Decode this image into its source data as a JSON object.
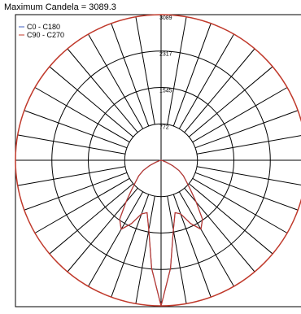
{
  "header": {
    "title": "Maximum Candela = 3089.3"
  },
  "colors": {
    "series_c0": "#3f5fc0",
    "series_c90": "#c0392b",
    "grid": "#000000",
    "frame": "#000000"
  },
  "chart_data": {
    "type": "polar",
    "title": "Maximum Candela = 3089.3",
    "radial_ticks": [
      "772",
      "1545",
      "2317",
      "3089"
    ],
    "radial_tick_values": [
      772,
      1545,
      2317,
      3089
    ],
    "radial_max": 3089,
    "angular_step_deg": 10,
    "grid": true,
    "legend_position": "top-left",
    "series": [
      {
        "name": "C0 - C180",
        "color": "#3f5fc0",
        "angles_deg": [
          0,
          5,
          10,
          15,
          20,
          25,
          30,
          35,
          40,
          45,
          50,
          55,
          60,
          65,
          70,
          75,
          80,
          85,
          90
        ],
        "values": [
          3089,
          2300,
          1500,
          1150,
          1210,
          1480,
          1690,
          1530,
          1160,
          880,
          700,
          580,
          440,
          270,
          110,
          30,
          0,
          0,
          0
        ]
      },
      {
        "name": "C90 - C270",
        "color": "#c0392b",
        "angles_deg": [
          0,
          5,
          10,
          15,
          20,
          25,
          30,
          35,
          40,
          45,
          50,
          55,
          60,
          65,
          70,
          75,
          80,
          85,
          90
        ],
        "values": [
          3089,
          2300,
          1500,
          1150,
          1210,
          1480,
          1690,
          1530,
          1160,
          880,
          700,
          580,
          440,
          270,
          110,
          30,
          0,
          0,
          0
        ]
      }
    ]
  }
}
